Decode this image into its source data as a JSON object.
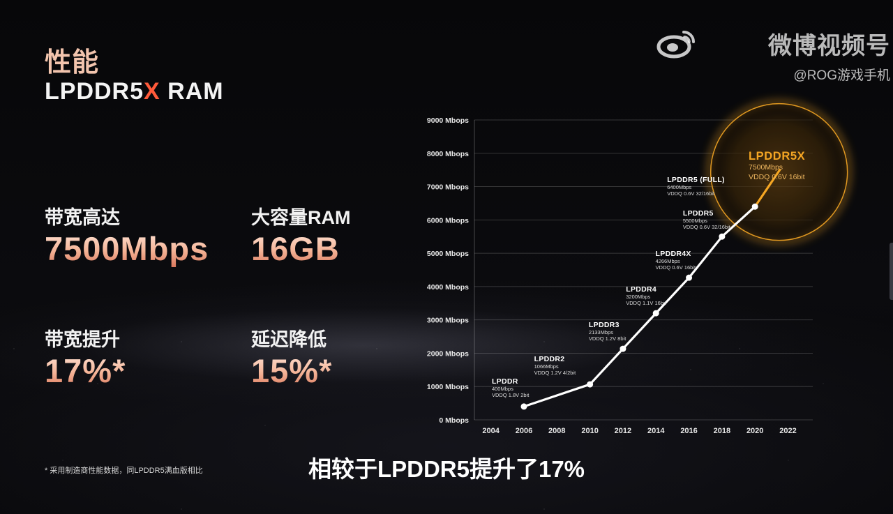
{
  "header": {
    "section_title": "性能",
    "model_prefix": "LPDDR5",
    "model_x": "X",
    "model_suffix": " RAM"
  },
  "stats": [
    {
      "label": "带宽高达",
      "value": "7500Mbps"
    },
    {
      "label": "大容量RAM",
      "value": "16GB"
    },
    {
      "label": "带宽提升",
      "value": "17%*"
    },
    {
      "label": "延迟降低",
      "value": "15%*"
    }
  ],
  "footnote": "* 采用制造商性能数据，同LPDDR5满血版相比",
  "subtitle": "相较于LPDDR5提升了17%",
  "watermark": {
    "main": "微博视频号",
    "sub": "@ROG游戏手机"
  },
  "colors": {
    "accent_orange": "#f5a623",
    "x_red": "#ff5a3a",
    "line": "#ffffff",
    "value_gradient_top": "#ffe7da",
    "value_gradient_bottom": "#d9755a"
  },
  "chart_data": {
    "type": "line",
    "x_ticks": [
      2004,
      2006,
      2008,
      2010,
      2012,
      2014,
      2016,
      2018,
      2020,
      2022
    ],
    "y_ticks": [
      0,
      1000,
      2000,
      3000,
      4000,
      5000,
      6000,
      7000,
      8000,
      9000
    ],
    "y_tick_suffix": " Mbops",
    "xlim": [
      2003,
      2023.5
    ],
    "ylim": [
      0,
      9000
    ],
    "grid": true,
    "points": [
      {
        "x": 2006,
        "y": 400,
        "name": "LPDDR",
        "speed": "400Mbps",
        "spec": "VDDQ 1.8V 2bit"
      },
      {
        "x": 2010,
        "y": 1066,
        "name": "LPDDR2",
        "speed": "1066Mbps",
        "spec": "VDDQ 1.2V 4/2bit"
      },
      {
        "x": 2012,
        "y": 2133,
        "name": "LPDDR3",
        "speed": "2133Mbps",
        "spec": "VDDQ 1.2V 8bit"
      },
      {
        "x": 2014,
        "y": 3200,
        "name": "LPDDR4",
        "speed": "3200Mbps",
        "spec": "VDDQ 1.1V 16bit"
      },
      {
        "x": 2016,
        "y": 4266,
        "name": "LPDDR4X",
        "speed": "4266Mbps",
        "spec": "VDDQ 0.6V 16bit"
      },
      {
        "x": 2018,
        "y": 5500,
        "name": "LPDDR5",
        "speed": "5500Mbps",
        "spec": "VDDQ 0.6V 32/16bit"
      },
      {
        "x": 2020,
        "y": 6400,
        "name": "LPDDR5 (FULL)",
        "speed": "6400Mbps",
        "spec": "VDDQ 0.6V 32/16bit"
      }
    ],
    "highlight": {
      "x": 2021.5,
      "y": 7500,
      "name": "LPDDR5X",
      "speed": "7500Mbps",
      "spec": "VDDQ 0.6V 16bit"
    }
  }
}
